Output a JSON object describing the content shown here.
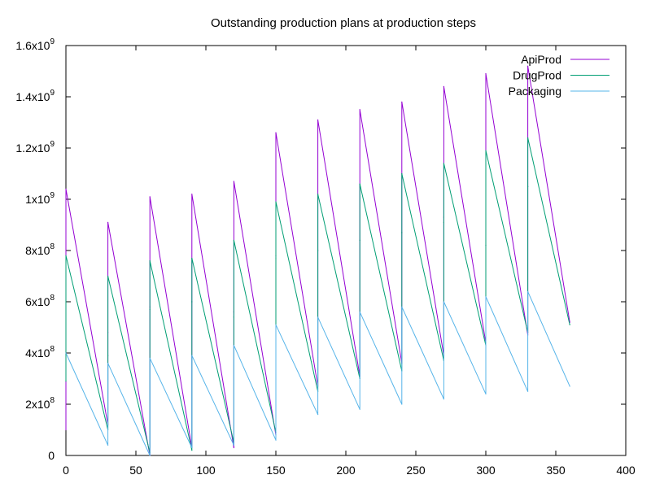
{
  "chart_data": {
    "type": "line",
    "title": "Outstanding production plans at production steps",
    "xlabel": "",
    "ylabel": "",
    "xlim": [
      0,
      400
    ],
    "ylim": [
      0,
      1600000000
    ],
    "x_ticks": [
      "0",
      "50",
      "100",
      "150",
      "200",
      "250",
      "300",
      "350",
      "400"
    ],
    "y_ticks": [
      {
        "value": 0,
        "mantissa": "0",
        "exp": ""
      },
      {
        "value": 200000000,
        "mantissa": "2x10",
        "exp": "8"
      },
      {
        "value": 400000000,
        "mantissa": "4x10",
        "exp": "8"
      },
      {
        "value": 600000000,
        "mantissa": "6x10",
        "exp": "8"
      },
      {
        "value": 800000000,
        "mantissa": "8x10",
        "exp": "8"
      },
      {
        "value": 1000000000,
        "mantissa": "1x10",
        "exp": "9"
      },
      {
        "value": 1200000000,
        "mantissa": "1.2x10",
        "exp": "9"
      },
      {
        "value": 1400000000,
        "mantissa": "1.4x10",
        "exp": "9"
      },
      {
        "value": 1600000000,
        "mantissa": "1.6x10",
        "exp": "9"
      }
    ],
    "legend_position": "top-right",
    "grid": false,
    "series": [
      {
        "name": "ApiProd",
        "color": "#9400d3",
        "points": [
          [
            0,
            100000000
          ],
          [
            0,
            1040000000
          ],
          [
            30,
            120000000
          ],
          [
            30,
            480000000
          ],
          [
            30,
            910000000
          ],
          [
            60,
            0
          ],
          [
            60,
            580000000
          ],
          [
            60,
            1010000000
          ],
          [
            90,
            30000000
          ],
          [
            90,
            600000000
          ],
          [
            90,
            1020000000
          ],
          [
            120,
            30000000
          ],
          [
            120,
            560000000
          ],
          [
            120,
            1070000000
          ],
          [
            150,
            80000000
          ],
          [
            150,
            780000000
          ],
          [
            150,
            1260000000
          ],
          [
            180,
            270000000
          ],
          [
            180,
            800000000
          ],
          [
            180,
            1310000000
          ],
          [
            210,
            310000000
          ],
          [
            210,
            840000000
          ],
          [
            210,
            1350000000
          ],
          [
            240,
            360000000
          ],
          [
            240,
            870000000
          ],
          [
            240,
            1380000000
          ],
          [
            270,
            390000000
          ],
          [
            270,
            930000000
          ],
          [
            270,
            1440000000
          ],
          [
            300,
            440000000
          ],
          [
            300,
            820000000
          ],
          [
            300,
            1490000000
          ],
          [
            330,
            470000000
          ],
          [
            330,
            1050000000
          ],
          [
            330,
            1520000000
          ],
          [
            360,
            520000000
          ]
        ]
      },
      {
        "name": "DrugProd",
        "color": "#009e73",
        "points": [
          [
            0,
            290000000
          ],
          [
            0,
            780000000
          ],
          [
            30,
            100000000
          ],
          [
            30,
            390000000
          ],
          [
            30,
            700000000
          ],
          [
            60,
            10000000
          ],
          [
            60,
            570000000
          ],
          [
            60,
            760000000
          ],
          [
            90,
            20000000
          ],
          [
            90,
            600000000
          ],
          [
            90,
            770000000
          ],
          [
            120,
            50000000
          ],
          [
            120,
            540000000
          ],
          [
            120,
            840000000
          ],
          [
            150,
            90000000
          ],
          [
            150,
            770000000
          ],
          [
            150,
            990000000
          ],
          [
            180,
            250000000
          ],
          [
            180,
            800000000
          ],
          [
            180,
            1020000000
          ],
          [
            210,
            300000000
          ],
          [
            210,
            840000000
          ],
          [
            210,
            1060000000
          ],
          [
            240,
            330000000
          ],
          [
            240,
            870000000
          ],
          [
            240,
            1100000000
          ],
          [
            270,
            370000000
          ],
          [
            270,
            910000000
          ],
          [
            270,
            1140000000
          ],
          [
            300,
            430000000
          ],
          [
            300,
            820000000
          ],
          [
            300,
            1190000000
          ],
          [
            330,
            480000000
          ],
          [
            330,
            1050000000
          ],
          [
            330,
            1240000000
          ],
          [
            360,
            510000000
          ]
        ]
      },
      {
        "name": "Packaging",
        "color": "#56b4e9",
        "points": [
          [
            0,
            400000000
          ],
          [
            30,
            40000000
          ],
          [
            30,
            360000000
          ],
          [
            60,
            0
          ],
          [
            60,
            380000000
          ],
          [
            90,
            30000000
          ],
          [
            90,
            390000000
          ],
          [
            120,
            40000000
          ],
          [
            120,
            430000000
          ],
          [
            150,
            60000000
          ],
          [
            150,
            510000000
          ],
          [
            180,
            160000000
          ],
          [
            180,
            540000000
          ],
          [
            210,
            180000000
          ],
          [
            210,
            560000000
          ],
          [
            240,
            200000000
          ],
          [
            240,
            580000000
          ],
          [
            270,
            220000000
          ],
          [
            270,
            600000000
          ],
          [
            300,
            240000000
          ],
          [
            300,
            620000000
          ],
          [
            330,
            250000000
          ],
          [
            330,
            640000000
          ],
          [
            360,
            270000000
          ]
        ]
      }
    ]
  }
}
